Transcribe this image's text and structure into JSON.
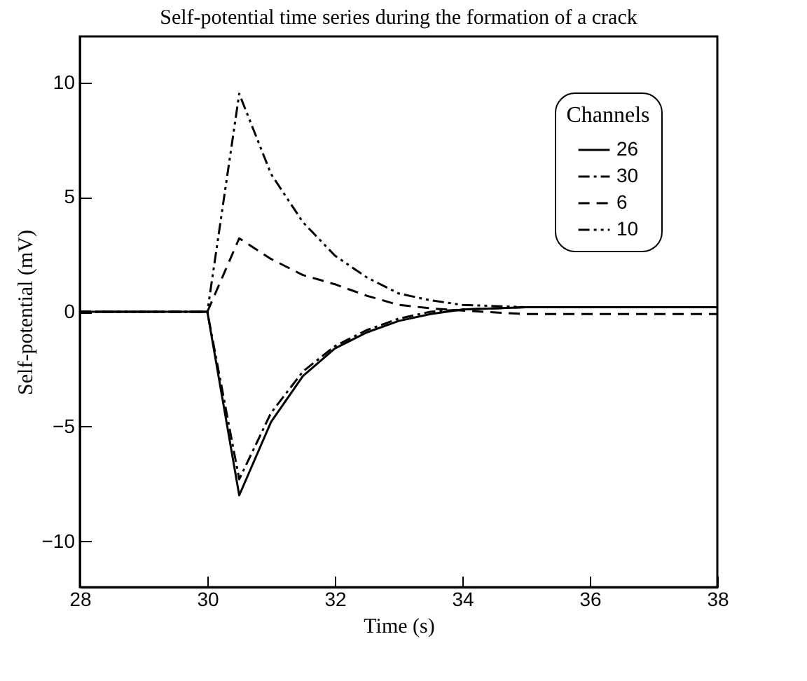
{
  "chart_data": {
    "type": "line",
    "title": "Self-potential time series during the formation of a crack",
    "xlabel": "Time (s)",
    "ylabel": "Self-potential (mV)",
    "legend_title": "Channels",
    "legend": "top right",
    "grid": false,
    "xlim": [
      28,
      38
    ],
    "xticks": [
      28,
      30,
      32,
      34,
      36,
      38
    ],
    "ylim": [
      -12,
      12
    ],
    "yticks": [
      -10,
      -5,
      0,
      5,
      10
    ],
    "x": [
      28,
      30,
      30.5,
      31,
      31.5,
      32,
      32.5,
      33,
      33.5,
      34,
      35,
      36,
      37,
      38
    ],
    "series": [
      {
        "name": "26",
        "color": "#000000",
        "line_style": "solid",
        "values": [
          0,
          0,
          -8,
          -4.8,
          -2.8,
          -1.6,
          -0.9,
          -0.4,
          -0.1,
          0.1,
          0.2,
          0.2,
          0.2,
          0.2
        ]
      },
      {
        "name": "30",
        "color": "#000000",
        "line_style": "dashdot",
        "values": [
          0,
          0,
          -7.3,
          -4.4,
          -2.6,
          -1.5,
          -0.8,
          -0.3,
          0,
          0.1,
          0.2,
          0.2,
          0.2,
          0.2
        ]
      },
      {
        "name": "6",
        "color": "#000000",
        "line_style": "dashed",
        "values": [
          0,
          0,
          3.2,
          2.3,
          1.6,
          1.2,
          0.7,
          0.3,
          0.15,
          0.05,
          -0.1,
          -0.1,
          -0.1,
          -0.1
        ]
      },
      {
        "name": "10",
        "color": "#000000",
        "line_style": "dashdotdot",
        "values": [
          0,
          0,
          9.5,
          6,
          3.9,
          2.45,
          1.5,
          0.8,
          0.5,
          0.3,
          0.2,
          0.2,
          0.2,
          0.2
        ]
      }
    ]
  }
}
